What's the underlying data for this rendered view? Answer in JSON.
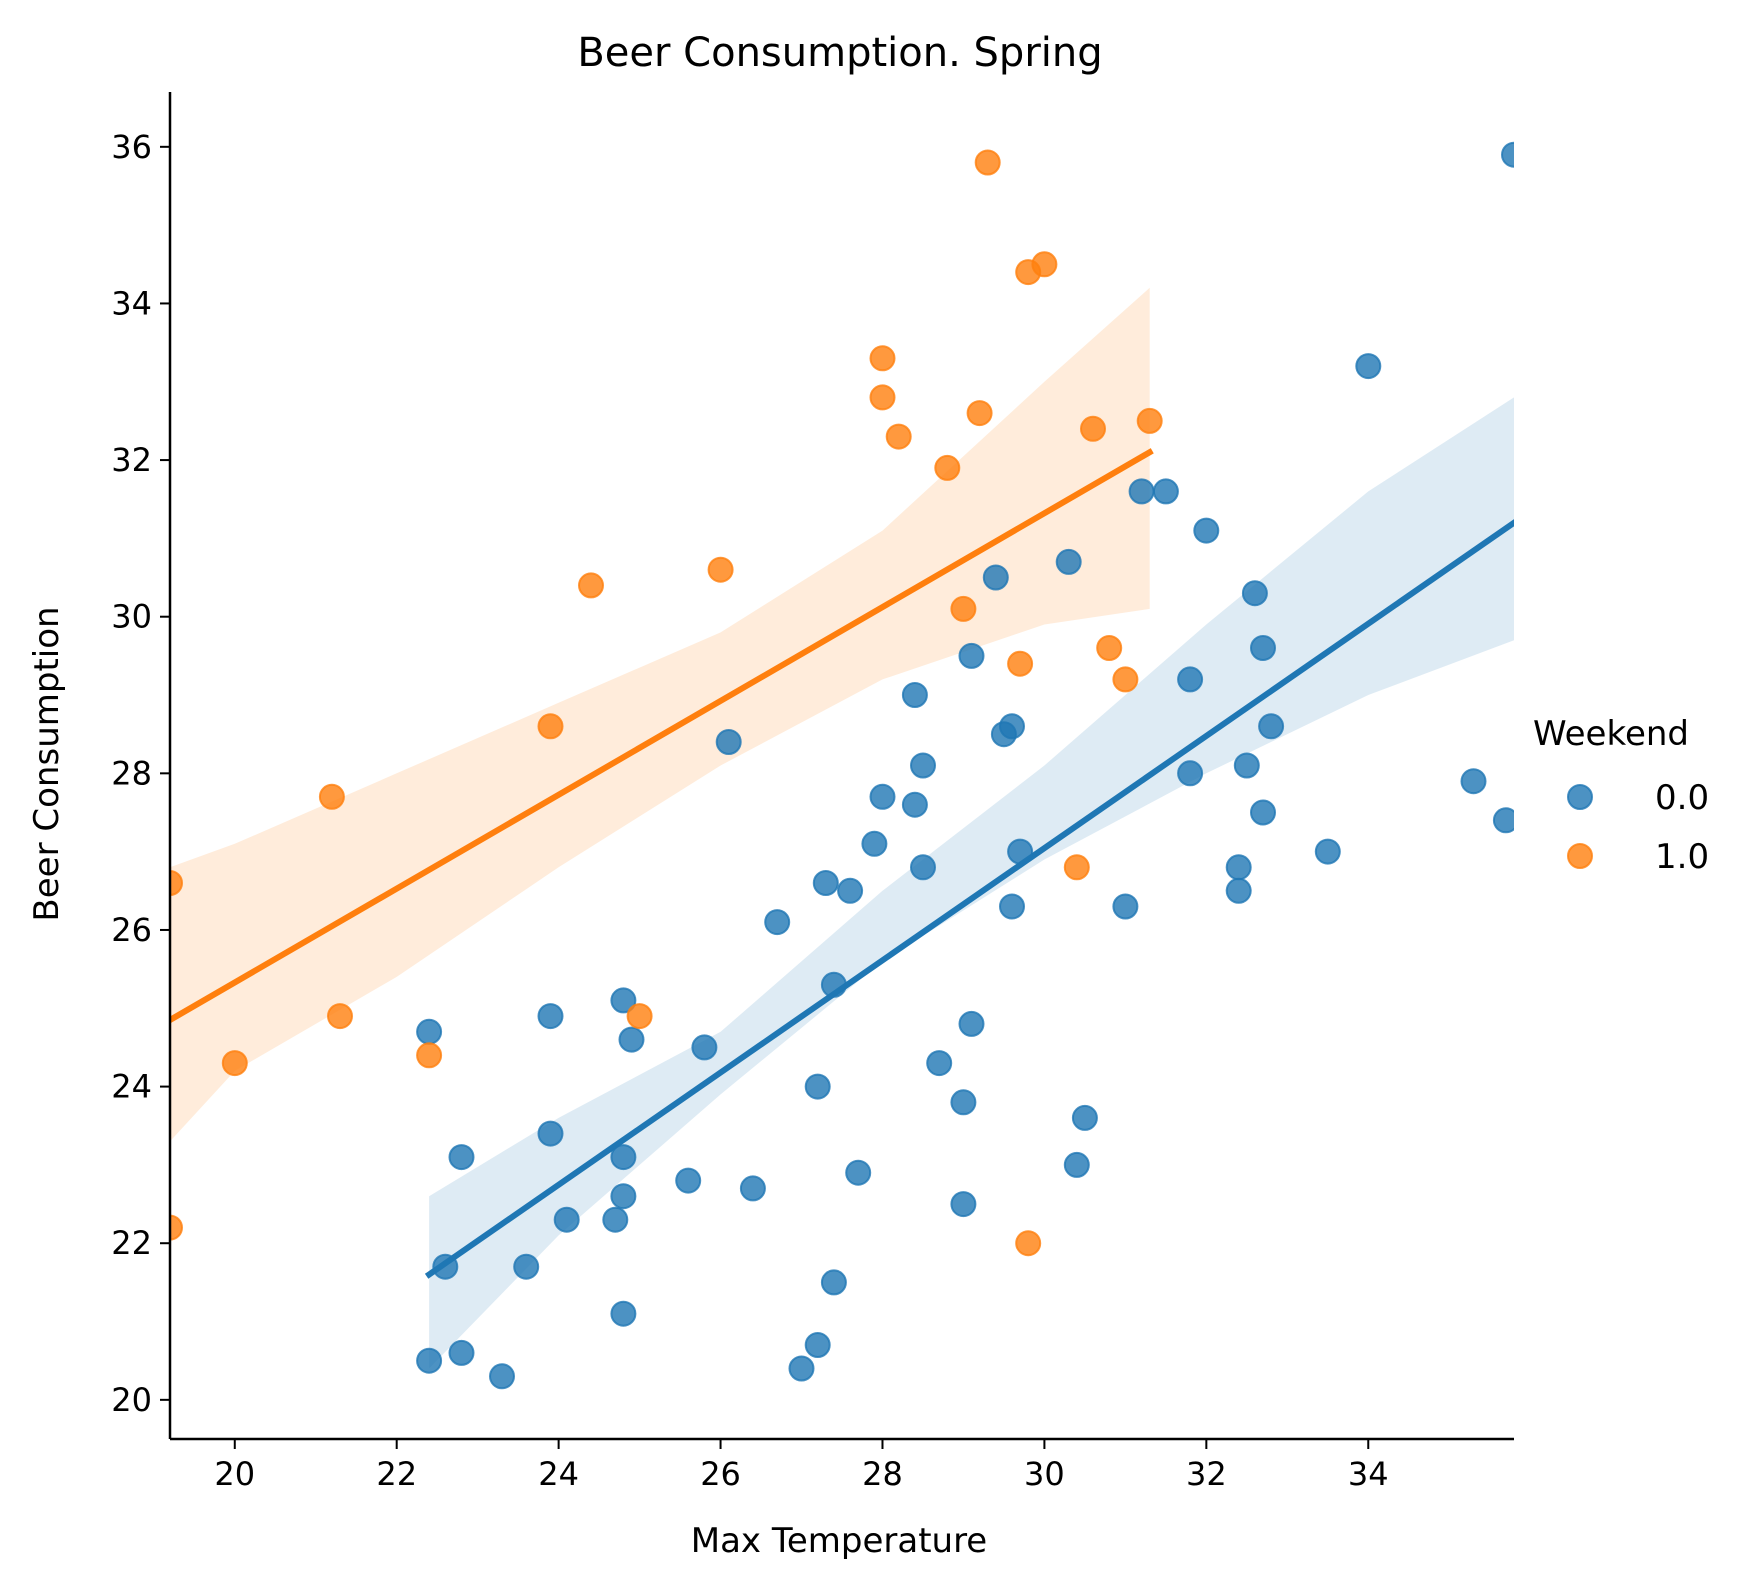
{
  "chart_data": {
    "type": "scatter",
    "title": "Beer Consumption. Spring",
    "xlabel": "Max Temperature",
    "ylabel": "Beer Consumption",
    "xlim": [
      19.2,
      35.8
    ],
    "ylim": [
      19.5,
      36.7
    ],
    "xticks": [
      20,
      22,
      24,
      26,
      28,
      30,
      32,
      34
    ],
    "yticks": [
      20,
      22,
      24,
      26,
      28,
      30,
      32,
      34,
      36
    ],
    "grid": false,
    "legend": {
      "title": "Weekend",
      "placement": "center-right"
    },
    "series": [
      {
        "name": "0.0",
        "color": "#1f77b4",
        "points": [
          [
            22.4,
            24.7
          ],
          [
            22.6,
            21.7
          ],
          [
            22.4,
            20.5
          ],
          [
            22.8,
            20.6
          ],
          [
            22.8,
            23.1
          ],
          [
            23.3,
            20.3
          ],
          [
            23.6,
            21.7
          ],
          [
            23.9,
            24.9
          ],
          [
            23.9,
            23.4
          ],
          [
            24.1,
            22.3
          ],
          [
            24.7,
            22.3
          ],
          [
            24.8,
            25.1
          ],
          [
            24.8,
            23.1
          ],
          [
            24.8,
            22.6
          ],
          [
            24.8,
            21.1
          ],
          [
            24.9,
            24.6
          ],
          [
            25.6,
            22.8
          ],
          [
            25.8,
            24.5
          ],
          [
            26.1,
            28.4
          ],
          [
            26.4,
            22.7
          ],
          [
            26.7,
            26.1
          ],
          [
            27.0,
            20.4
          ],
          [
            27.2,
            24.0
          ],
          [
            27.2,
            20.7
          ],
          [
            27.3,
            26.6
          ],
          [
            27.4,
            25.3
          ],
          [
            27.4,
            21.5
          ],
          [
            27.6,
            26.5
          ],
          [
            27.7,
            22.9
          ],
          [
            27.9,
            27.1
          ],
          [
            28.0,
            27.7
          ],
          [
            28.4,
            27.6
          ],
          [
            28.4,
            29.0
          ],
          [
            28.5,
            28.1
          ],
          [
            28.5,
            26.8
          ],
          [
            28.7,
            24.3
          ],
          [
            29.0,
            23.8
          ],
          [
            29.0,
            22.5
          ],
          [
            29.1,
            29.5
          ],
          [
            29.1,
            24.8
          ],
          [
            29.4,
            30.5
          ],
          [
            29.5,
            28.5
          ],
          [
            29.6,
            28.6
          ],
          [
            29.6,
            26.3
          ],
          [
            29.7,
            27.0
          ],
          [
            30.3,
            30.7
          ],
          [
            30.4,
            23.0
          ],
          [
            30.5,
            23.6
          ],
          [
            31.0,
            26.3
          ],
          [
            31.2,
            31.6
          ],
          [
            31.5,
            31.6
          ],
          [
            31.8,
            29.2
          ],
          [
            31.8,
            28.0
          ],
          [
            32.0,
            31.1
          ],
          [
            32.4,
            26.8
          ],
          [
            32.4,
            26.5
          ],
          [
            32.5,
            28.1
          ],
          [
            32.6,
            30.3
          ],
          [
            32.7,
            29.6
          ],
          [
            32.7,
            27.5
          ],
          [
            32.8,
            28.6
          ],
          [
            33.5,
            27.0
          ],
          [
            34.0,
            33.2
          ],
          [
            35.3,
            27.9
          ],
          [
            35.7,
            27.4
          ],
          [
            35.8,
            35.9
          ]
        ],
        "fit_line": [
          [
            22.4,
            21.6
          ],
          [
            35.8,
            31.2
          ]
        ],
        "ci_band": {
          "x": [
            22.4,
            24.0,
            26.0,
            28.0,
            30.0,
            32.0,
            34.0,
            35.8
          ],
          "lower": [
            20.4,
            22.1,
            23.9,
            25.6,
            26.9,
            28.0,
            29.0,
            29.7
          ],
          "upper": [
            22.6,
            23.6,
            24.7,
            26.5,
            28.1,
            29.9,
            31.6,
            32.8
          ]
        }
      },
      {
        "name": "1.0",
        "color": "#ff7f0e",
        "points": [
          [
            19.2,
            26.6
          ],
          [
            19.2,
            22.2
          ],
          [
            20.0,
            24.3
          ],
          [
            21.2,
            27.7
          ],
          [
            21.3,
            24.9
          ],
          [
            22.4,
            24.4
          ],
          [
            23.9,
            28.6
          ],
          [
            24.4,
            30.4
          ],
          [
            25.0,
            24.9
          ],
          [
            26.0,
            30.6
          ],
          [
            28.0,
            33.3
          ],
          [
            28.0,
            32.8
          ],
          [
            28.2,
            32.3
          ],
          [
            28.8,
            31.9
          ],
          [
            29.0,
            30.1
          ],
          [
            29.2,
            32.6
          ],
          [
            29.3,
            35.8
          ],
          [
            29.7,
            29.4
          ],
          [
            29.8,
            34.4
          ],
          [
            29.8,
            22.0
          ],
          [
            30.0,
            34.5
          ],
          [
            30.4,
            26.8
          ],
          [
            30.6,
            32.4
          ],
          [
            30.8,
            29.6
          ],
          [
            31.0,
            29.2
          ],
          [
            31.3,
            32.5
          ]
        ],
        "fit_line": [
          [
            19.2,
            24.85
          ],
          [
            31.3,
            32.1
          ]
        ],
        "ci_band": {
          "x": [
            19.2,
            20.0,
            22.0,
            24.0,
            26.0,
            28.0,
            30.0,
            31.3
          ],
          "lower": [
            23.3,
            24.2,
            25.4,
            26.8,
            28.1,
            29.2,
            29.9,
            30.1
          ],
          "upper": [
            26.8,
            27.1,
            28.0,
            28.9,
            29.8,
            31.1,
            33.0,
            34.2
          ]
        }
      }
    ]
  }
}
